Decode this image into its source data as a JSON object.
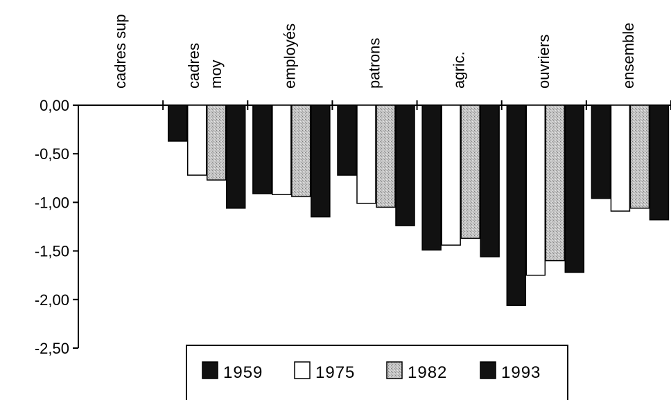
{
  "chart_data": {
    "type": "bar",
    "categories": [
      "cadres sup",
      "cadres moy",
      "employés",
      "patrons",
      "agric.",
      "ouvriers",
      "ensemble"
    ],
    "category_label_lines": [
      [
        "cadres sup"
      ],
      [
        "cadres",
        "moy"
      ],
      [
        "employés"
      ],
      [
        "patrons"
      ],
      [
        "agric."
      ],
      [
        "ouvriers"
      ],
      [
        "ensemble"
      ]
    ],
    "series": [
      {
        "name": "1959",
        "values": [
          0,
          -0.37,
          -0.91,
          -0.72,
          -1.49,
          -2.06,
          -0.96
        ]
      },
      {
        "name": "1975",
        "values": [
          0,
          -0.72,
          -0.92,
          -1.01,
          -1.44,
          -1.75,
          -1.09
        ]
      },
      {
        "name": "1982",
        "values": [
          0,
          -0.77,
          -0.94,
          -1.05,
          -1.37,
          -1.6,
          -1.06
        ]
      },
      {
        "name": "1993",
        "values": [
          0,
          -1.06,
          -1.15,
          -1.24,
          -1.56,
          -1.72,
          -1.18
        ]
      }
    ],
    "ylim": [
      -2.5,
      0
    ],
    "yticks": [
      0,
      -0.5,
      -1,
      -1.5,
      -2,
      -2.5
    ],
    "ytick_labels": [
      "0,00",
      "-0,50",
      "-1,00",
      "-1,50",
      "-2,00",
      "-2,50"
    ],
    "grid": false,
    "legend_position": "bottom-center",
    "colors": {
      "1959": "#111111",
      "1975": "#ffffff",
      "1982": "#b4b4b4",
      "1993": "#111111"
    }
  }
}
